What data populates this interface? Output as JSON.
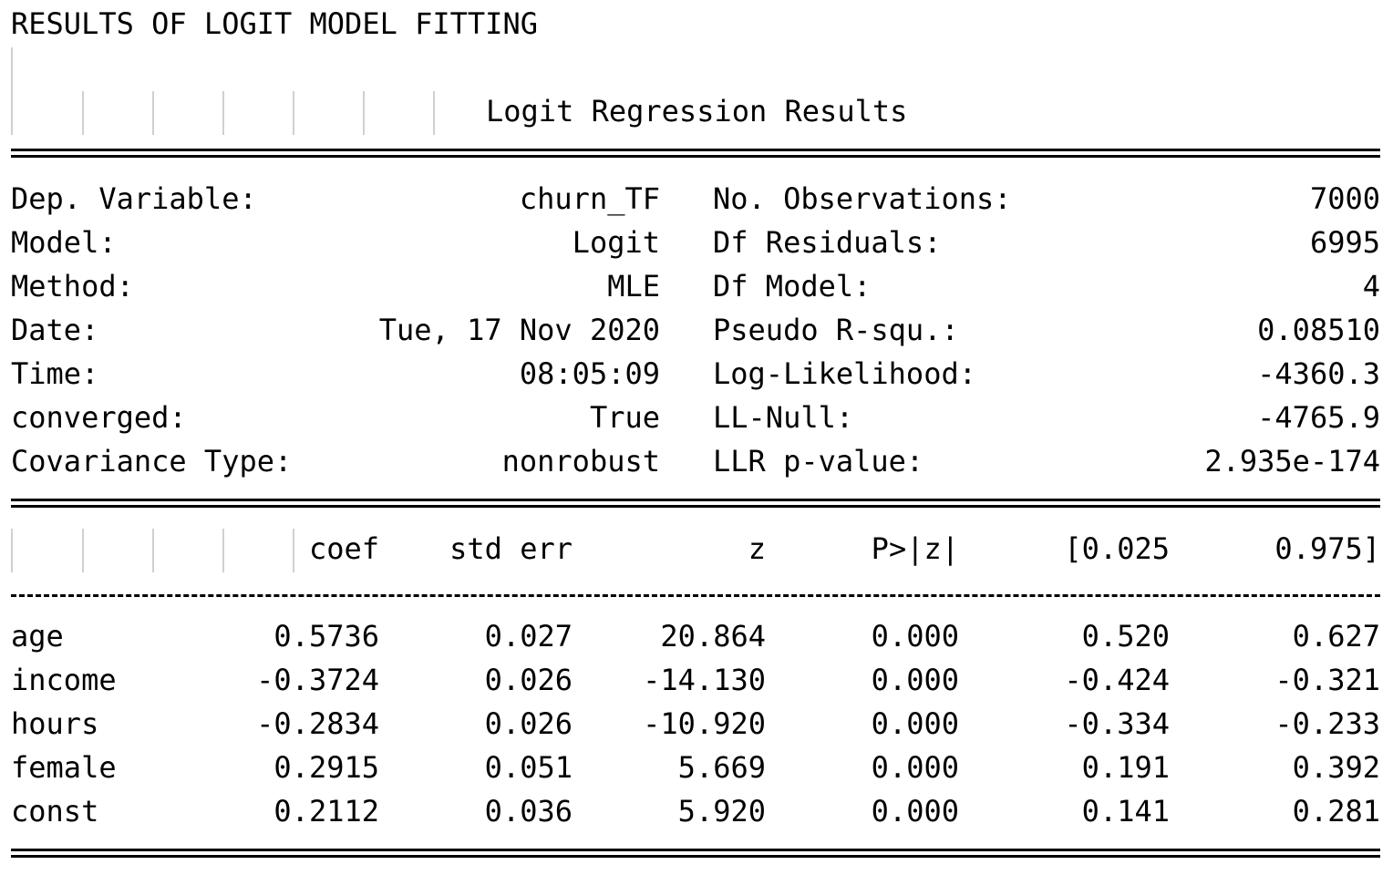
{
  "heading": "RESULTS OF LOGIT MODEL FITTING",
  "table_title": "Logit Regression Results",
  "summary_left": [
    {
      "label": "Dep. Variable:",
      "value": "churn_TF"
    },
    {
      "label": "Model:",
      "value": "Logit"
    },
    {
      "label": "Method:",
      "value": "MLE"
    },
    {
      "label": "Date:",
      "value": "Tue, 17 Nov 2020"
    },
    {
      "label": "Time:",
      "value": "08:05:09"
    },
    {
      "label": "converged:",
      "value": "True"
    },
    {
      "label": "Covariance Type:",
      "value": "nonrobust"
    }
  ],
  "summary_right": [
    {
      "label": "No. Observations:",
      "value": "7000"
    },
    {
      "label": "Df Residuals:",
      "value": "6995"
    },
    {
      "label": "Df Model:",
      "value": "4"
    },
    {
      "label": "Pseudo R-squ.:",
      "value": "0.08510"
    },
    {
      "label": "Log-Likelihood:",
      "value": "-4360.3"
    },
    {
      "label": "LL-Null:",
      "value": "-4765.9"
    },
    {
      "label": "LLR p-value:",
      "value": "2.935e-174"
    }
  ],
  "coef_headers": [
    "coef",
    "std err",
    "z",
    "P>|z|",
    "[0.025",
    "0.975]"
  ],
  "coef_rows": [
    {
      "name": "age",
      "values": [
        "0.5736",
        "0.027",
        "20.864",
        "0.000",
        "0.520",
        "0.627"
      ]
    },
    {
      "name": "income",
      "values": [
        "-0.3724",
        "0.026",
        "-14.130",
        "0.000",
        "-0.424",
        "-0.321"
      ]
    },
    {
      "name": "hours",
      "values": [
        "-0.2834",
        "0.026",
        "-10.920",
        "0.000",
        "-0.334",
        "-0.233"
      ]
    },
    {
      "name": "female",
      "values": [
        "0.2915",
        "0.051",
        "5.669",
        "0.000",
        "0.191",
        "0.392"
      ]
    },
    {
      "name": "const",
      "values": [
        "0.2112",
        "0.036",
        "5.920",
        "0.000",
        "0.141",
        "0.281"
      ]
    }
  ]
}
